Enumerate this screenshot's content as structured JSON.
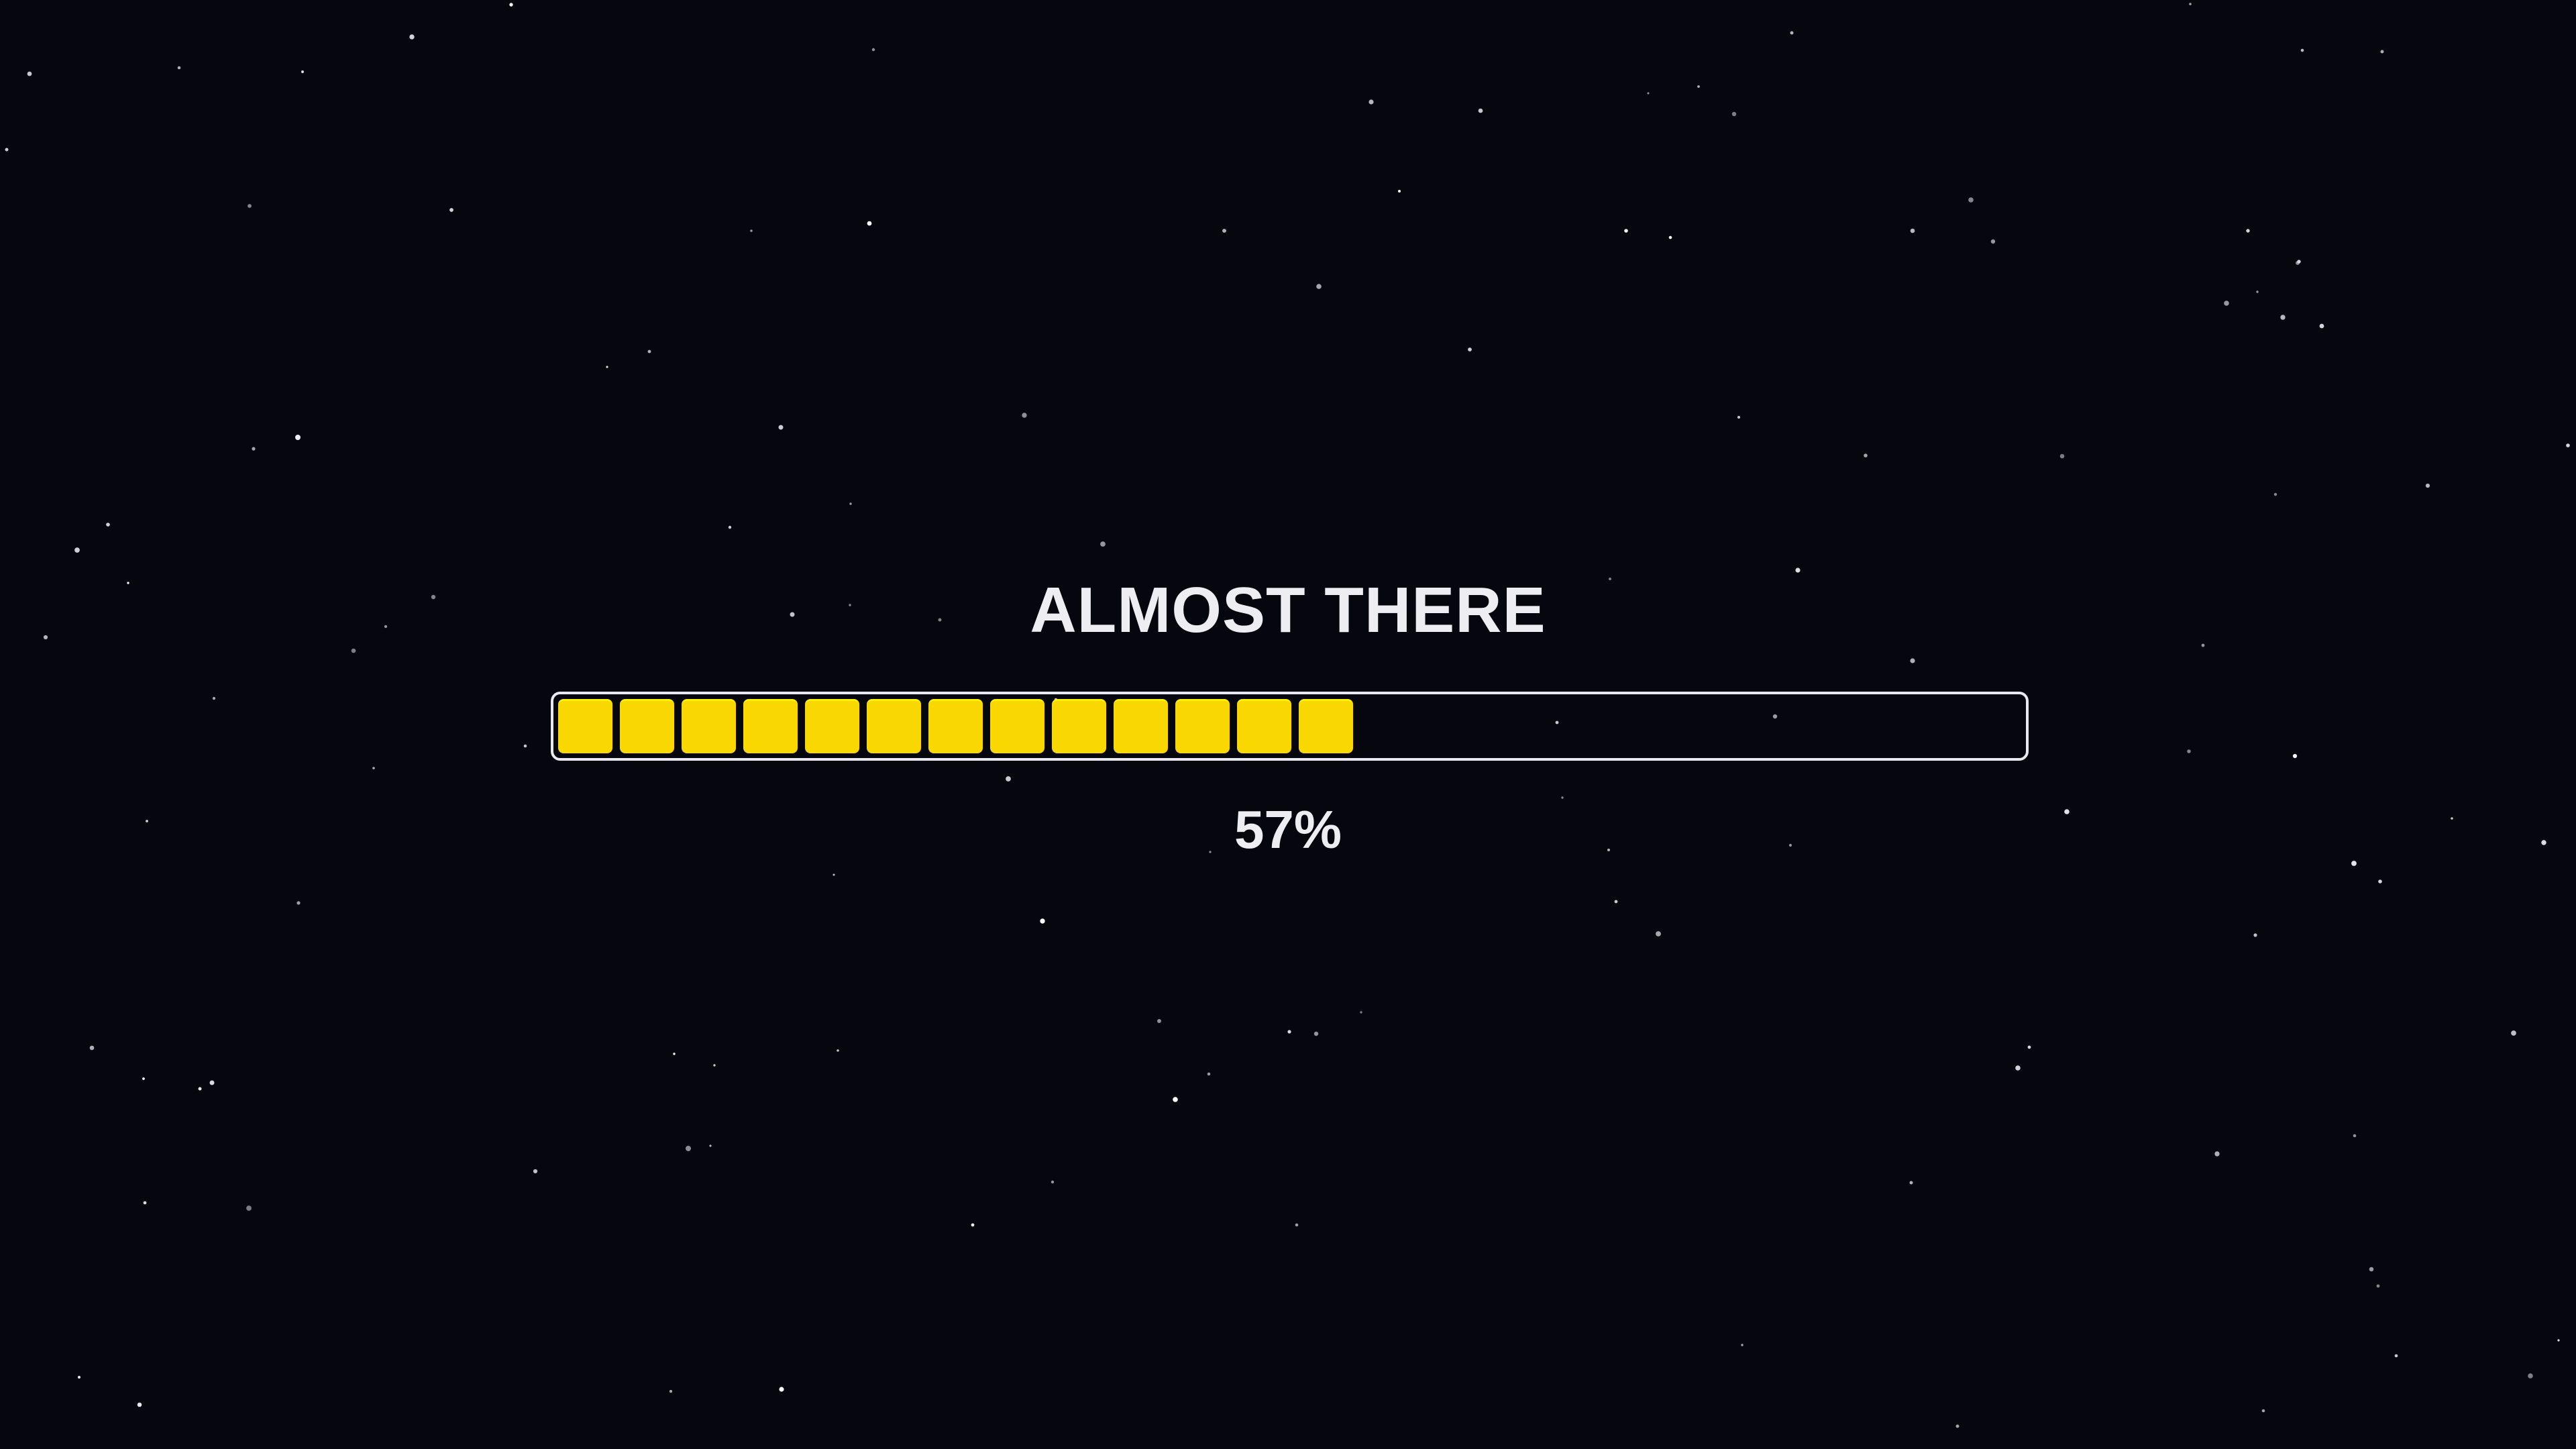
{
  "title": "ALMOST THERE",
  "progress": {
    "percent_label": "57%",
    "value": 57,
    "filled_blocks": 13,
    "fill_color": "#f9d700"
  },
  "background": {
    "color": "#06060f",
    "decor": "starfield"
  }
}
